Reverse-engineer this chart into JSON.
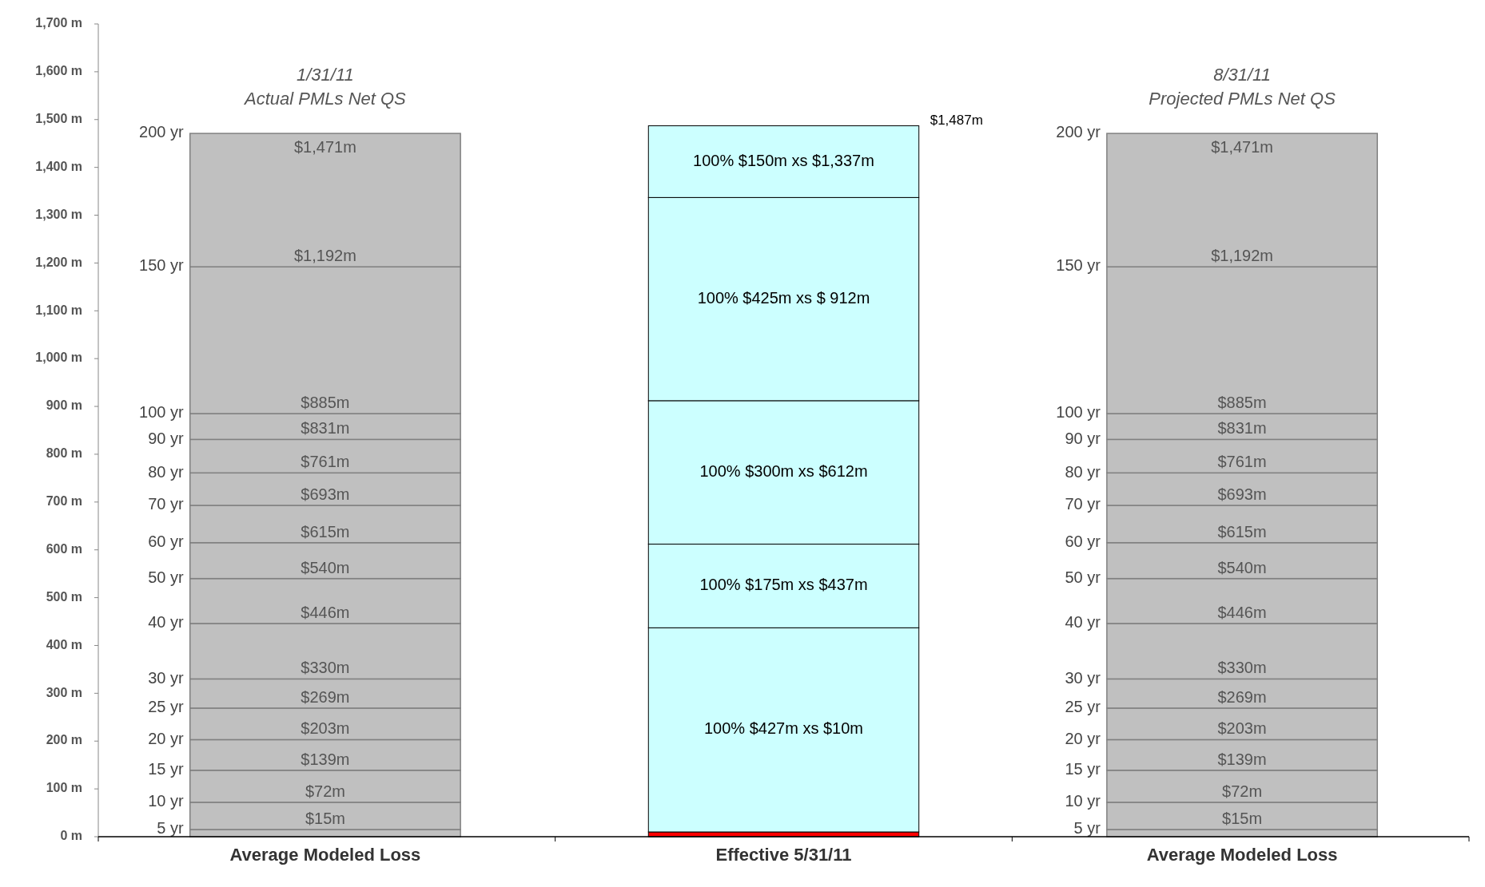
{
  "chart_data": {
    "type": "bar",
    "stacked": true,
    "categories": [
      "Average Modeled Loss",
      "Effective 5/31/11",
      "Average Modeled Loss"
    ],
    "series": [
      {
        "color": "#c0c0c0",
        "values": [
          15,
          null,
          15
        ]
      },
      {
        "color": "#c0c0c0",
        "values": [
          57,
          null,
          57
        ]
      },
      {
        "color": "#c0c0c0",
        "values": [
          67,
          null,
          67
        ]
      },
      {
        "color": "#c0c0c0",
        "values": [
          64,
          null,
          64
        ]
      },
      {
        "color": "#c0c0c0",
        "values": [
          66,
          null,
          66
        ]
      },
      {
        "color": "#c0c0c0",
        "values": [
          61,
          null,
          61
        ]
      },
      {
        "color": "#c0c0c0",
        "values": [
          116,
          null,
          116
        ]
      },
      {
        "color": "#c0c0c0",
        "values": [
          94,
          null,
          94
        ]
      },
      {
        "color": "#c0c0c0",
        "values": [
          75,
          null,
          75
        ]
      },
      {
        "color": "#c0c0c0",
        "values": [
          78,
          null,
          78
        ]
      },
      {
        "color": "#c0c0c0",
        "values": [
          68,
          null,
          68
        ]
      },
      {
        "color": "#c0c0c0",
        "values": [
          70,
          null,
          70
        ]
      },
      {
        "color": "#c0c0c0",
        "values": [
          54,
          null,
          54
        ]
      },
      {
        "color": "#c0c0c0",
        "values": [
          307,
          null,
          307
        ]
      },
      {
        "color": "#c0c0c0",
        "values": [
          279,
          null,
          279
        ]
      },
      {
        "color": "#ff0000",
        "values": [
          null,
          10,
          null
        ]
      },
      {
        "color": "#ccffff",
        "values": [
          null,
          427,
          null
        ]
      },
      {
        "color": "#ccffff",
        "values": [
          null,
          175,
          null
        ]
      },
      {
        "color": "#ccffff",
        "values": [
          null,
          300,
          null
        ]
      },
      {
        "color": "#ccffff",
        "values": [
          null,
          425,
          null
        ]
      },
      {
        "color": "#ccffff",
        "values": [
          null,
          150,
          null
        ]
      }
    ],
    "totals": [
      null,
      "$1,487m",
      null
    ],
    "ylim": [
      0,
      1700
    ],
    "yticks": [
      {
        "value": 0,
        "label": "0 m"
      },
      {
        "value": 100,
        "label": "100 m"
      },
      {
        "value": 200,
        "label": "200 m"
      },
      {
        "value": 300,
        "label": "300 m"
      },
      {
        "value": 400,
        "label": "400 m"
      },
      {
        "value": 500,
        "label": "500 m"
      },
      {
        "value": 600,
        "label": "600 m"
      },
      {
        "value": 700,
        "label": "700 m"
      },
      {
        "value": 800,
        "label": "800 m"
      },
      {
        "value": 900,
        "label": "900 m"
      },
      {
        "value": 1000,
        "label": "1,000 m"
      },
      {
        "value": 1100,
        "label": "1,100 m"
      },
      {
        "value": 1200,
        "label": "1,200 m"
      },
      {
        "value": 1300,
        "label": "1,300 m"
      },
      {
        "value": 1400,
        "label": "1,400 m"
      },
      {
        "value": 1500,
        "label": "1,500 m"
      },
      {
        "value": 1600,
        "label": "1,600 m"
      },
      {
        "value": 1700,
        "label": "1,700 m"
      }
    ],
    "annotations": [
      "1/31/11",
      "Actual PMLs Net QS",
      "200 yr",
      "$1,471m",
      "150 yr",
      "$1,192m",
      "100 yr",
      "$885m",
      "90 yr",
      "$831m",
      "80 yr",
      "$761m",
      "70 yr",
      "$693m",
      "60 yr",
      "$615m",
      "50 yr",
      "$540m",
      "40 yr",
      "$446m",
      "30 yr",
      "$330m",
      "25 yr",
      "$269m",
      "20 yr",
      "$203m",
      "15 yr",
      "$139m",
      "10 yr",
      "$72m",
      "5  yr",
      "$15m",
      "100% $150m xs $1,337m",
      "100% $425m xs $ 912m",
      "100% $300m xs $612m",
      "100% $175m xs $437m",
      "100% $427m xs $10m",
      "8/31/11",
      "Projected PMLs Net QS",
      "200 yr",
      "$1,471m",
      "150 yr",
      "$1,192m",
      "100 yr",
      "$885m",
      "90 yr",
      "$831m",
      "80 yr",
      "$761m",
      "70 yr",
      "$693m",
      "60 yr",
      "$615m",
      "50 yr",
      "$540m",
      "40 yr",
      "$446m",
      "30 yr",
      "$330m",
      "25 yr",
      "$269m",
      "20 yr",
      "$203m",
      "15 yr",
      "$139m",
      "10 yr",
      "$72m",
      "5  yr",
      "$15m"
    ]
  }
}
